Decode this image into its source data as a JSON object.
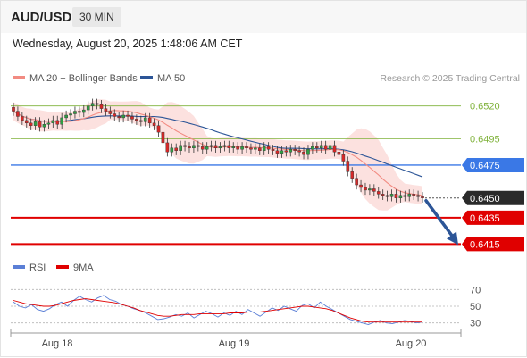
{
  "header": {
    "pair": "AUD/USD",
    "timeframe": "30 MIN",
    "timestamp": "Wednesday, August 20, 2025 1:48:06 AM CET"
  },
  "legend": {
    "ma20": "MA 20 + Bollinger Bands",
    "ma50": "MA 50",
    "credit": "Research © 2025 Trading Central",
    "ma20_color": "#f28b82",
    "ma50_color": "#2c5597"
  },
  "rsi_legend": {
    "rsi": "RSI",
    "ma9": "9MA",
    "rsi_color": "#5b7fd6",
    "ma9_color": "#e00000"
  },
  "chart_data": [
    {
      "type": "candlestick",
      "title": "",
      "ylim": [
        0.6403,
        0.6532
      ],
      "x_ticks": [
        "Aug 18",
        "Aug 19",
        "Aug 20"
      ],
      "levels": [
        {
          "label": "0.6520",
          "value": 0.652,
          "kind": "resistance",
          "color": "#7fb23a"
        },
        {
          "label": "0.6495",
          "value": 0.6495,
          "kind": "resistance",
          "color": "#7fb23a"
        },
        {
          "label": "0.6475",
          "value": 0.6475,
          "kind": "pivot",
          "color": "#3a78e6"
        },
        {
          "label": "0.6450",
          "value": 0.645,
          "kind": "last",
          "color": "#333333"
        },
        {
          "label": "0.6435",
          "value": 0.6435,
          "kind": "support",
          "color": "#e00000"
        },
        {
          "label": "0.6415",
          "value": 0.6415,
          "kind": "support",
          "color": "#e00000"
        }
      ],
      "forecast_arrow": {
        "from": 0.645,
        "to": 0.6415,
        "color": "#2c5597"
      },
      "close_path": [
        0.6516,
        0.6512,
        0.6509,
        0.6507,
        0.6505,
        0.6508,
        0.6504,
        0.6506,
        0.6507,
        0.6509,
        0.6506,
        0.6511,
        0.6513,
        0.6514,
        0.6516,
        0.6515,
        0.6517,
        0.652,
        0.6522,
        0.6521,
        0.6518,
        0.6516,
        0.6514,
        0.6512,
        0.6511,
        0.6513,
        0.6512,
        0.651,
        0.6509,
        0.6508,
        0.6511,
        0.6507,
        0.6505,
        0.65,
        0.6492,
        0.6485,
        0.6488,
        0.6486,
        0.649,
        0.6489,
        0.6488,
        0.649,
        0.6489,
        0.6487,
        0.6489,
        0.649,
        0.6488,
        0.6489,
        0.649,
        0.6488,
        0.6489,
        0.6487,
        0.6489,
        0.6488,
        0.6487,
        0.6488,
        0.6486,
        0.6489,
        0.6487,
        0.6486,
        0.6484,
        0.6486,
        0.6485,
        0.6487,
        0.6486,
        0.6485,
        0.6483,
        0.6487,
        0.6489,
        0.6488,
        0.649,
        0.6487,
        0.649,
        0.6485,
        0.6483,
        0.6478,
        0.647,
        0.6465,
        0.646,
        0.6458,
        0.6456,
        0.6457,
        0.6455,
        0.6453,
        0.6452,
        0.6451,
        0.6453,
        0.645,
        0.6452,
        0.6451,
        0.6453,
        0.6452,
        0.6451,
        0.645
      ]
    },
    {
      "type": "line",
      "title": "",
      "ylim": [
        20,
        80
      ],
      "y_ticks": [
        "70",
        "50",
        "30"
      ],
      "x_ticks": [
        "Aug 18",
        "Aug 19",
        "Aug 20"
      ],
      "series": [
        {
          "name": "RSI",
          "values": [
            55,
            50,
            48,
            52,
            46,
            44,
            47,
            52,
            55,
            50,
            57,
            62,
            58,
            55,
            60,
            63,
            58,
            56,
            52,
            50,
            47,
            45,
            42,
            38,
            34,
            35,
            37,
            40,
            38,
            42,
            36,
            40,
            44,
            41,
            37,
            42,
            39,
            44,
            40,
            46,
            42,
            38,
            43,
            48,
            45,
            50,
            47,
            44,
            51,
            53,
            48,
            55,
            50,
            46,
            42,
            38,
            34,
            32,
            30,
            28,
            31,
            33,
            30,
            29,
            31,
            33,
            32,
            30,
            31
          ]
        },
        {
          "name": "9MA",
          "values": [
            57,
            55,
            53,
            52,
            51,
            50,
            50,
            51,
            53,
            55,
            57,
            58,
            59,
            58,
            57,
            56,
            55,
            54,
            52,
            50,
            48,
            45,
            43,
            41,
            39,
            38,
            38,
            39,
            40,
            40,
            40,
            41,
            41,
            41,
            41,
            41,
            42,
            42,
            42,
            43,
            43,
            43,
            44,
            45,
            46,
            47,
            48,
            49,
            50,
            50,
            49,
            48,
            47,
            45,
            42,
            39,
            36,
            34,
            32,
            31,
            31,
            31,
            31,
            31,
            31,
            31,
            31,
            31,
            31
          ]
        }
      ]
    }
  ]
}
